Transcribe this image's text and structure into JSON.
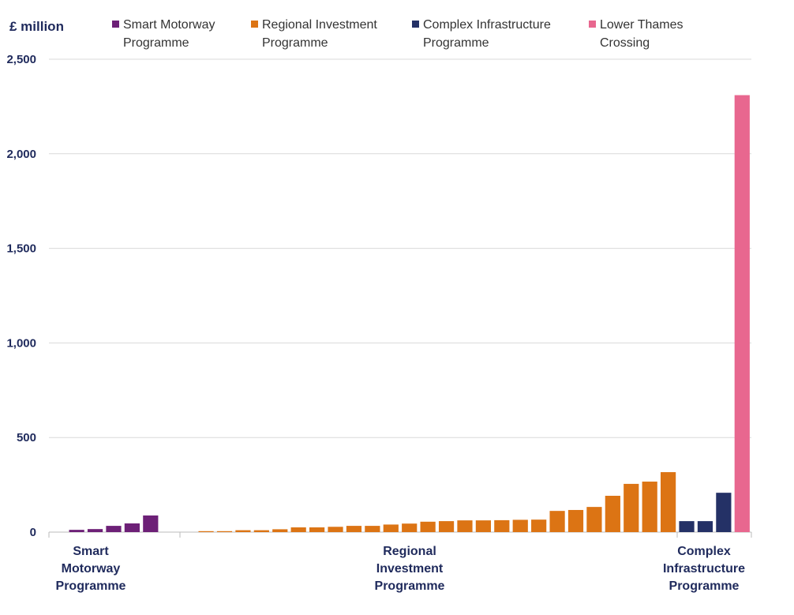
{
  "chart_data": {
    "type": "bar",
    "y_label": "£ million",
    "categories": [
      null,
      null,
      null,
      null,
      null,
      null,
      null,
      null,
      null,
      null,
      null,
      null,
      null,
      null,
      null,
      null,
      null,
      null,
      null,
      null,
      null,
      null,
      null,
      null,
      null,
      null,
      null,
      null,
      null,
      null,
      null,
      null,
      null,
      null,
      null,
      null,
      null,
      null
    ],
    "series": [
      {
        "name": "Smart Motorway Programme",
        "color": "#6d2077",
        "values": [
          null,
          12,
          16,
          33,
          46,
          88,
          null,
          null,
          null,
          null,
          null,
          null,
          null,
          null,
          null,
          null,
          null,
          null,
          null,
          null,
          null,
          null,
          null,
          null,
          null,
          null,
          null,
          null,
          null,
          null,
          null,
          null,
          null,
          null,
          null,
          null,
          null,
          null
        ]
      },
      {
        "name": "Regional Investment Programme",
        "color": "#dc7414",
        "values": [
          null,
          null,
          null,
          null,
          null,
          null,
          null,
          null,
          5,
          5,
          10,
          10,
          15,
          25,
          25,
          28,
          33,
          33,
          40,
          45,
          55,
          58,
          62,
          62,
          63,
          65,
          66,
          112,
          117,
          133,
          192,
          255,
          267,
          317,
          null,
          null,
          null,
          null
        ]
      },
      {
        "name": "Complex Infrastructure Programme",
        "color": "#243166",
        "values": [
          null,
          null,
          null,
          null,
          null,
          null,
          null,
          null,
          null,
          null,
          null,
          null,
          null,
          null,
          null,
          null,
          null,
          null,
          null,
          null,
          null,
          null,
          null,
          null,
          null,
          null,
          null,
          null,
          null,
          null,
          null,
          null,
          null,
          null,
          58,
          58,
          208,
          null
        ]
      },
      {
        "name": "Lower Thames Crossing",
        "color": "#e8678f",
        "values": [
          null,
          null,
          null,
          null,
          null,
          null,
          null,
          null,
          null,
          null,
          null,
          null,
          null,
          null,
          null,
          null,
          null,
          null,
          null,
          null,
          null,
          null,
          null,
          null,
          null,
          null,
          null,
          null,
          null,
          null,
          null,
          null,
          null,
          null,
          null,
          null,
          null,
          2310
        ]
      }
    ],
    "group_labels": [
      "Smart Motorway Programme",
      "Regional Investment Programme",
      "Complex Infrastructure Programme"
    ],
    "ylim": [
      0,
      2500
    ],
    "yticks": [
      0,
      500,
      {
        "value": 1000,
        "label": "1,000"
      },
      {
        "value": 1500,
        "label": "1,500"
      },
      {
        "value": 2000,
        "label": "2,000"
      },
      {
        "value": 2500,
        "label": "2,500"
      }
    ],
    "grid": true
  }
}
